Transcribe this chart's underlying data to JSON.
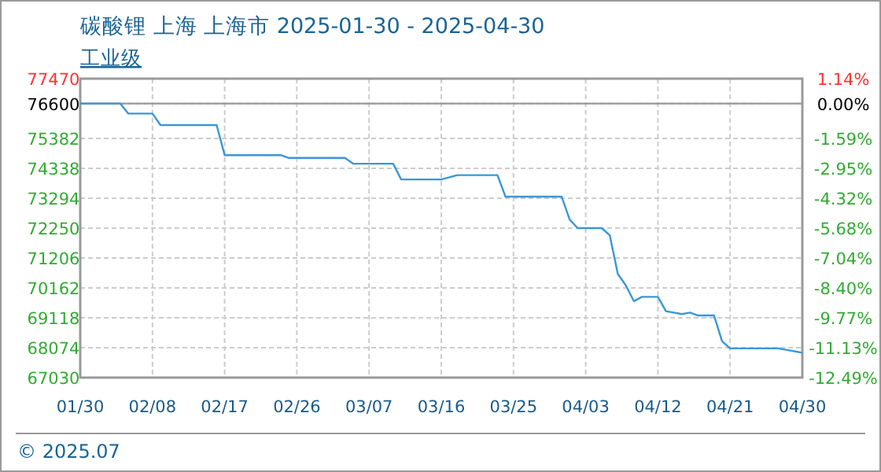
{
  "chart_data": {
    "type": "line",
    "title": "碳酸锂 上海 上海市 2025-01-30 - 2025-04-30",
    "subtitle": "工业级",
    "series": [
      {
        "color": "#3a97d8",
        "x": [
          "2025-01-30",
          "2025-02-04",
          "2025-02-05",
          "2025-02-08",
          "2025-02-09",
          "2025-02-16",
          "2025-02-17",
          "2025-02-24",
          "2025-02-25",
          "2025-03-04",
          "2025-03-05",
          "2025-03-10",
          "2025-03-11",
          "2025-03-16",
          "2025-03-18",
          "2025-03-23",
          "2025-03-24",
          "2025-03-31",
          "2025-04-01",
          "2025-04-02",
          "2025-04-05",
          "2025-04-06",
          "2025-04-07",
          "2025-04-08",
          "2025-04-09",
          "2025-04-10",
          "2025-04-12",
          "2025-04-13",
          "2025-04-15",
          "2025-04-16",
          "2025-04-17",
          "2025-04-19",
          "2025-04-20",
          "2025-04-21",
          "2025-04-27",
          "2025-04-30"
        ],
        "values": [
          76600,
          76600,
          76250,
          76250,
          75850,
          75850,
          74800,
          74800,
          74700,
          74700,
          74500,
          74500,
          73950,
          73950,
          74100,
          74100,
          73350,
          73350,
          72550,
          72250,
          72250,
          72000,
          70650,
          70250,
          69700,
          69850,
          69850,
          69350,
          69250,
          69300,
          69200,
          69200,
          68300,
          68050,
          68050,
          67900
        ]
      }
    ],
    "xlim": [
      "2025-01-30",
      "2025-04-30"
    ],
    "xticks": [
      {
        "value": "2025-01-30",
        "label": "01/30"
      },
      {
        "value": "2025-02-08",
        "label": "02/08"
      },
      {
        "value": "2025-02-17",
        "label": "02/17"
      },
      {
        "value": "2025-02-26",
        "label": "02/26"
      },
      {
        "value": "2025-03-07",
        "label": "03/07"
      },
      {
        "value": "2025-03-16",
        "label": "03/16"
      },
      {
        "value": "2025-03-25",
        "label": "03/25"
      },
      {
        "value": "2025-04-03",
        "label": "04/03"
      },
      {
        "value": "2025-04-12",
        "label": "04/12"
      },
      {
        "value": "2025-04-21",
        "label": "04/21"
      },
      {
        "value": "2025-04-30",
        "label": "04/30"
      }
    ],
    "ylim": [
      67030,
      77470
    ],
    "yticks": [
      77470,
      76600,
      75382,
      74338,
      73294,
      72250,
      71206,
      70162,
      69118,
      68074,
      67030
    ],
    "y2lim": [
      -12.49,
      1.14
    ],
    "y2ticks": [
      {
        "value": 1.14,
        "label": "1.14%"
      },
      {
        "value": 0,
        "label": "0.00%"
      },
      {
        "value": -1.59,
        "label": "-1.59%"
      },
      {
        "value": -2.95,
        "label": "-2.95%"
      },
      {
        "value": -4.32,
        "label": "-4.32%"
      },
      {
        "value": -5.68,
        "label": "-5.68%"
      },
      {
        "value": -7.04,
        "label": "-7.04%"
      },
      {
        "value": -8.4,
        "label": "-8.40%"
      },
      {
        "value": -9.77,
        "label": "-9.77%"
      },
      {
        "value": -11.13,
        "label": "-11.13%"
      },
      {
        "value": -12.49,
        "label": "-12.49%"
      }
    ],
    "ref_lines": [
      {
        "axis": "y",
        "value": 76600,
        "color": "#999999"
      }
    ],
    "grid": true,
    "marker": "none",
    "line_style": "solid",
    "annotations": [
      "© 2025.07"
    ]
  }
}
